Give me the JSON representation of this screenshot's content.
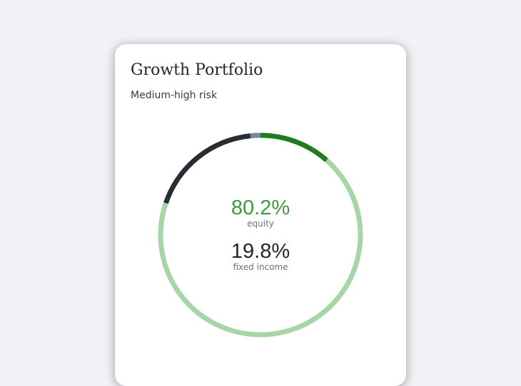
{
  "card": {
    "title": "Growth Portfolio",
    "subtitle": "Medium-high risk",
    "equity": {
      "value": "80.2%",
      "label": "equity",
      "color": "#3d9a3d"
    },
    "fixed_income": {
      "value": "19.8%",
      "label": "fixed income",
      "color": "#22262a"
    }
  },
  "chart_data": {
    "type": "donut",
    "segments": [
      {
        "value": 11.5,
        "color": "#1b7d1f"
      },
      {
        "value": 68.7,
        "color": "#a6d5a8"
      },
      {
        "value": 18.2,
        "color": "#272d33"
      },
      {
        "value": 1.6,
        "color": "#7a8699"
      }
    ]
  }
}
